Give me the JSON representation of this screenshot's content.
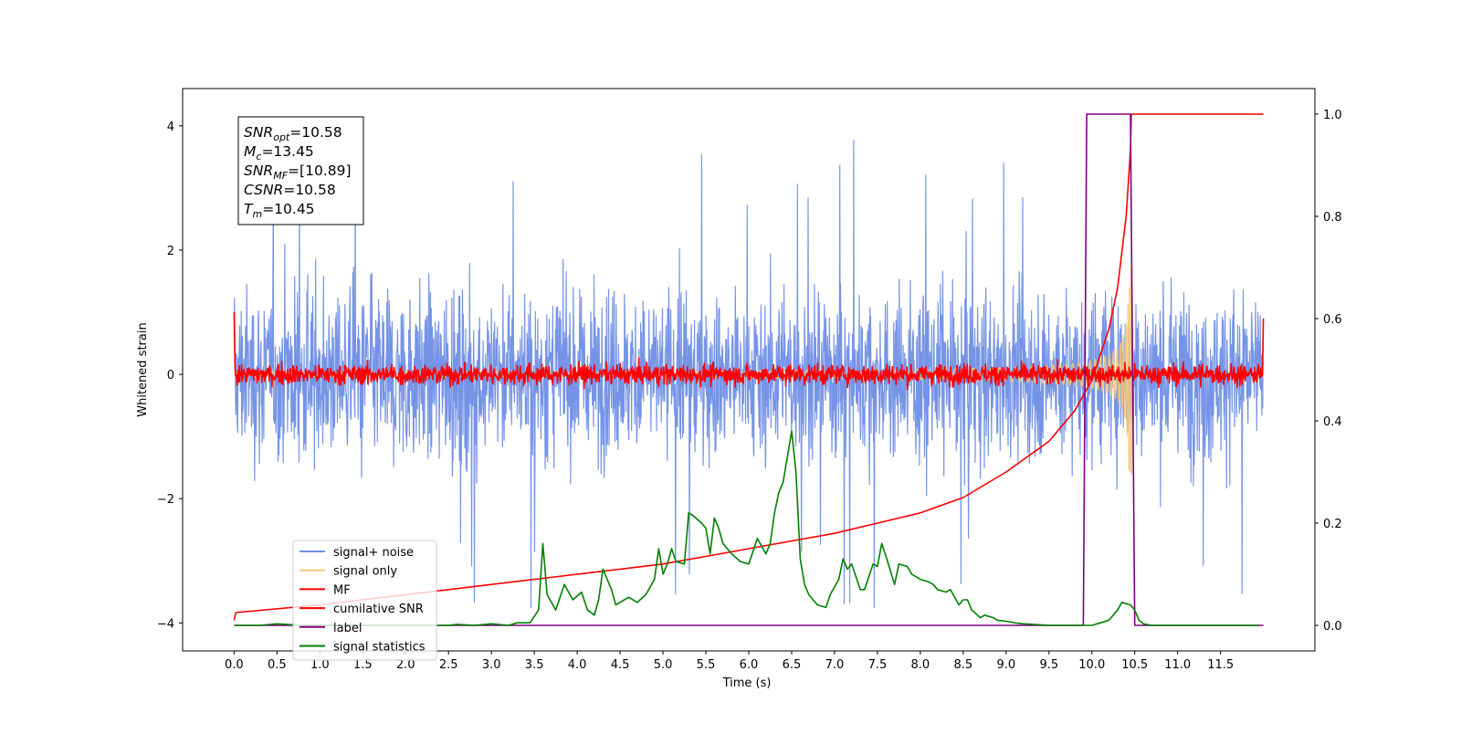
{
  "chart_data": {
    "type": "line",
    "xlabel": "Time (s)",
    "ylabel": "Whitened strain",
    "ylabel_right": "",
    "x_range": [
      -0.6,
      12.6
    ],
    "xlim_data": [
      0,
      12
    ],
    "ylim_left": [
      -4.45,
      4.6
    ],
    "ylim_right": [
      -0.05,
      1.05
    ],
    "x_ticks": [
      "0.0",
      "0.5",
      "1.0",
      "1.5",
      "2.0",
      "2.5",
      "3.0",
      "3.5",
      "4.0",
      "4.5",
      "5.0",
      "5.5",
      "6.0",
      "6.5",
      "7.0",
      "7.5",
      "8.0",
      "8.5",
      "9.0",
      "9.5",
      "10.0",
      "10.5",
      "11.0",
      "11.5"
    ],
    "y_ticks_left": [
      "4",
      "2",
      "0",
      "−2",
      "−4"
    ],
    "y_ticks_left_values": [
      4,
      2,
      0,
      -2,
      -4
    ],
    "y_ticks_right": [
      "1.0",
      "0.8",
      "0.6",
      "0.4",
      "0.2",
      "0.0"
    ],
    "y_ticks_right_values": [
      1.0,
      0.8,
      0.6,
      0.4,
      0.2,
      0.0
    ],
    "grid": false,
    "legend_position": "lower-left",
    "info_box": [
      {
        "sym": "SNR",
        "sub": "opt",
        "val": "=10.58"
      },
      {
        "sym": "M",
        "sub": "c",
        "val": "=13.45"
      },
      {
        "sym": "SNR",
        "sub": "MF",
        "val": "=[10.89]"
      },
      {
        "sym": "CSNR",
        "sub": "",
        "val": "=10.58"
      },
      {
        "sym": "T",
        "sub": "m",
        "val": "=10.45"
      }
    ],
    "series": [
      {
        "name": "signal+ noise",
        "color": "#6f8ee6",
        "axis": "left",
        "kind": "noise",
        "envelope": [
          -2.4,
          2.9
        ],
        "peak_max": 4.15,
        "peak_min": -3.75
      },
      {
        "name": "signal only",
        "color": "#f5c97a",
        "axis": "left",
        "kind": "chirp",
        "merger_time": 10.45,
        "peak_amplitude": 1.7
      },
      {
        "name": "MF",
        "color": "#ff0000",
        "axis": "left",
        "kind": "mf",
        "level": 0.0,
        "spread": 0.2,
        "start_value": 1.0,
        "end_value": 0.9
      },
      {
        "name": "cumilative SNR",
        "color": "#ff0000",
        "axis": "right",
        "kind": "line",
        "x": [
          0.0,
          0.02,
          1.0,
          2.0,
          3.0,
          4.0,
          5.0,
          6.0,
          7.0,
          7.5,
          8.0,
          8.5,
          9.0,
          9.5,
          9.8,
          10.0,
          10.2,
          10.3,
          10.4,
          10.45,
          10.46,
          12.0
        ],
        "y": [
          0.01,
          0.025,
          0.04,
          0.06,
          0.08,
          0.1,
          0.12,
          0.15,
          0.18,
          0.2,
          0.22,
          0.25,
          0.3,
          0.36,
          0.42,
          0.48,
          0.58,
          0.66,
          0.8,
          0.93,
          1.0,
          1.0
        ]
      },
      {
        "name": "label",
        "color": "#800080",
        "axis": "right",
        "kind": "line",
        "x": [
          0.0,
          9.9,
          9.94,
          10.45,
          10.5,
          12.0
        ],
        "y": [
          0.0,
          0.0,
          1.0,
          1.0,
          0.0,
          0.0
        ]
      },
      {
        "name": "signal statistics",
        "color": "#008000",
        "axis": "right",
        "kind": "line",
        "x": [
          0.0,
          0.3,
          0.5,
          0.8,
          1.0,
          1.5,
          2.0,
          2.5,
          2.6,
          2.8,
          3.0,
          3.2,
          3.3,
          3.45,
          3.55,
          3.6,
          3.65,
          3.75,
          3.85,
          3.95,
          4.05,
          4.12,
          4.2,
          4.25,
          4.3,
          4.4,
          4.45,
          4.5,
          4.6,
          4.7,
          4.8,
          4.9,
          4.95,
          5.0,
          5.05,
          5.1,
          5.15,
          5.25,
          5.3,
          5.35,
          5.45,
          5.5,
          5.55,
          5.6,
          5.65,
          5.7,
          5.8,
          5.9,
          6.0,
          6.1,
          6.2,
          6.25,
          6.3,
          6.35,
          6.4,
          6.45,
          6.5,
          6.55,
          6.6,
          6.65,
          6.7,
          6.8,
          6.9,
          6.95,
          7.0,
          7.05,
          7.1,
          7.15,
          7.2,
          7.3,
          7.35,
          7.45,
          7.5,
          7.55,
          7.6,
          7.7,
          7.75,
          7.85,
          7.9,
          8.0,
          8.1,
          8.15,
          8.2,
          8.3,
          8.35,
          8.45,
          8.5,
          8.55,
          8.6,
          8.7,
          8.75,
          8.85,
          8.9,
          9.0,
          9.1,
          9.2,
          9.5,
          10.0,
          10.1,
          10.2,
          10.3,
          10.35,
          10.45,
          10.5,
          10.55,
          10.6,
          10.7,
          11.0,
          11.5,
          11.93
        ],
        "y": [
          0.0,
          0.0,
          0.003,
          0.0,
          0.0,
          0.0,
          0.0,
          0.0,
          0.002,
          0.0,
          0.003,
          0.0,
          0.005,
          0.005,
          0.03,
          0.16,
          0.06,
          0.03,
          0.08,
          0.05,
          0.065,
          0.03,
          0.02,
          0.05,
          0.11,
          0.07,
          0.04,
          0.045,
          0.055,
          0.045,
          0.06,
          0.09,
          0.15,
          0.1,
          0.12,
          0.15,
          0.125,
          0.12,
          0.22,
          0.215,
          0.2,
          0.19,
          0.14,
          0.21,
          0.19,
          0.16,
          0.14,
          0.125,
          0.12,
          0.17,
          0.14,
          0.16,
          0.22,
          0.26,
          0.28,
          0.33,
          0.38,
          0.3,
          0.13,
          0.08,
          0.06,
          0.04,
          0.035,
          0.06,
          0.075,
          0.09,
          0.13,
          0.11,
          0.12,
          0.07,
          0.07,
          0.12,
          0.115,
          0.16,
          0.135,
          0.08,
          0.12,
          0.115,
          0.1,
          0.09,
          0.085,
          0.08,
          0.07,
          0.065,
          0.07,
          0.04,
          0.05,
          0.05,
          0.03,
          0.015,
          0.02,
          0.015,
          0.01,
          0.008,
          0.005,
          0.003,
          0.0,
          0.0,
          0.005,
          0.01,
          0.03,
          0.045,
          0.04,
          0.03,
          0.01,
          0.003,
          0.0,
          0.0,
          0.0,
          0.0
        ]
      }
    ]
  }
}
